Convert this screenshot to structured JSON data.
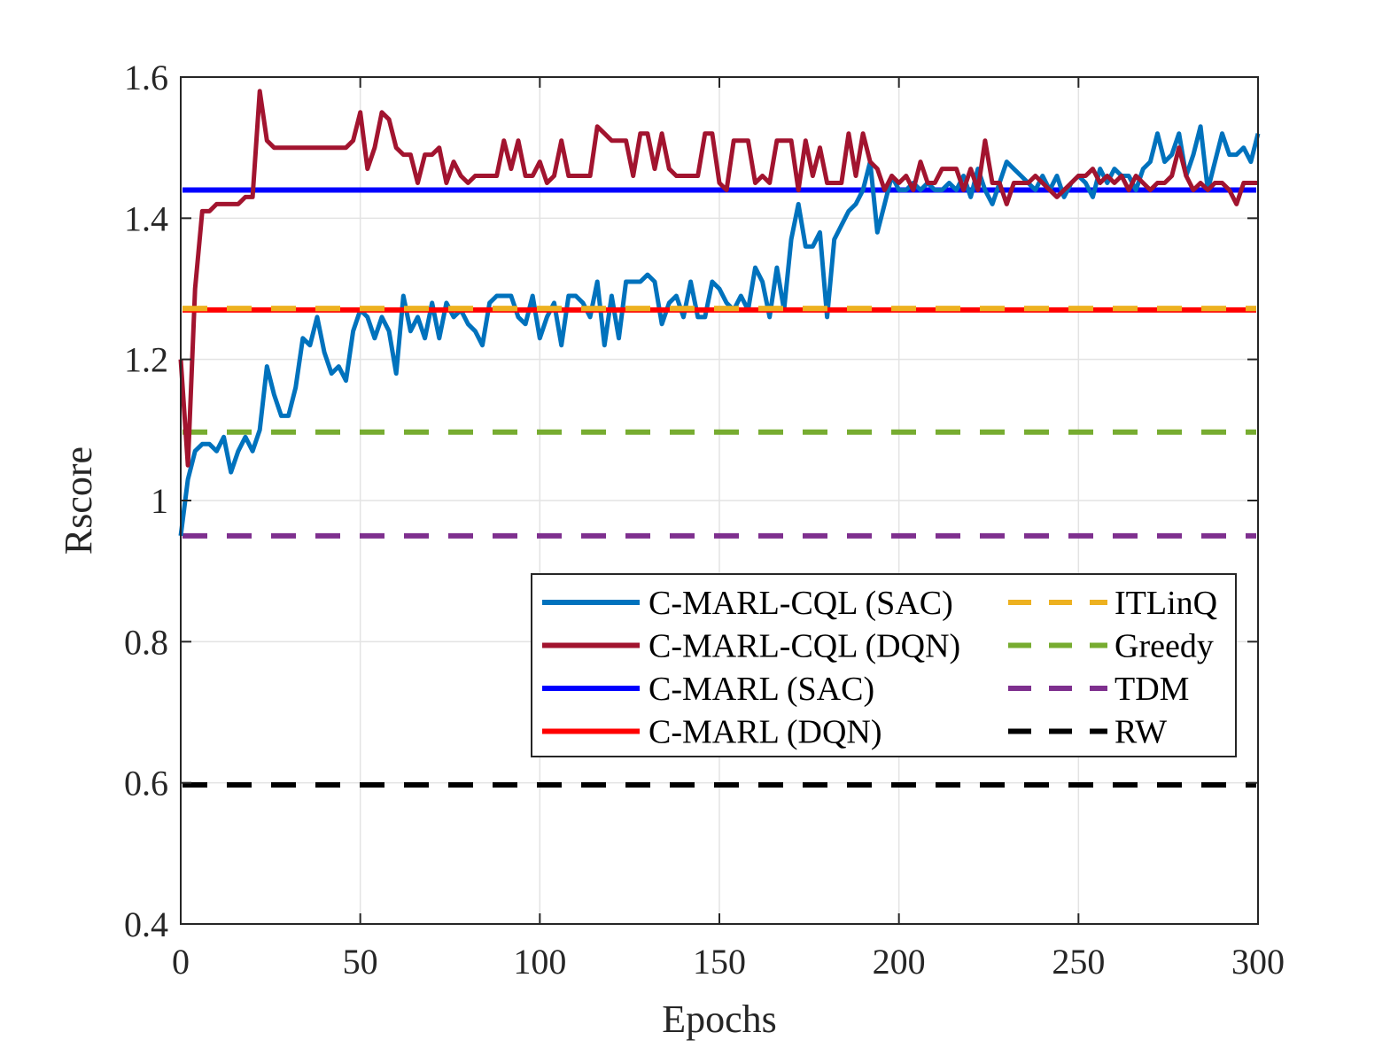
{
  "chart_data": {
    "type": "line",
    "xlabel": "Epochs",
    "ylabel": "Rscore",
    "xlim": [
      0,
      300
    ],
    "ylim": [
      0.4,
      1.6
    ],
    "xticks": [
      0,
      50,
      100,
      150,
      200,
      250,
      300
    ],
    "yticks": [
      0.4,
      0.6,
      0.8,
      1,
      1.2,
      1.4,
      1.6
    ],
    "xtick_labels": [
      "0",
      "50",
      "100",
      "150",
      "200",
      "250",
      "300"
    ],
    "ytick_labels": [
      "0.4",
      "0.6",
      "0.8",
      "1",
      "1.2",
      "1.4",
      "1.6"
    ],
    "grid": true,
    "legend_position": "lower-right",
    "series": [
      {
        "name": "C-MARL-CQL (SAC)",
        "style": "solid",
        "color": "#0072BD",
        "x": [
          0,
          2,
          4,
          6,
          8,
          10,
          12,
          14,
          16,
          18,
          20,
          22,
          24,
          26,
          28,
          30,
          32,
          34,
          36,
          38,
          40,
          42,
          44,
          46,
          48,
          50,
          52,
          54,
          56,
          58,
          60,
          62,
          64,
          66,
          68,
          70,
          72,
          74,
          76,
          78,
          80,
          82,
          84,
          86,
          88,
          90,
          92,
          94,
          96,
          98,
          100,
          102,
          104,
          106,
          108,
          110,
          112,
          114,
          116,
          118,
          120,
          122,
          124,
          126,
          128,
          130,
          132,
          134,
          136,
          138,
          140,
          142,
          144,
          146,
          148,
          150,
          152,
          154,
          156,
          158,
          160,
          162,
          164,
          166,
          168,
          170,
          172,
          174,
          176,
          178,
          180,
          182,
          184,
          186,
          188,
          190,
          192,
          194,
          196,
          198,
          200,
          202,
          204,
          206,
          208,
          210,
          212,
          214,
          216,
          218,
          220,
          222,
          224,
          226,
          228,
          230,
          232,
          234,
          236,
          238,
          240,
          242,
          244,
          246,
          248,
          250,
          252,
          254,
          256,
          258,
          260,
          262,
          264,
          266,
          268,
          270,
          272,
          274,
          276,
          278,
          280,
          282,
          284,
          286,
          288,
          290,
          292,
          294,
          296,
          298,
          300
        ],
        "y": [
          0.95,
          1.03,
          1.07,
          1.08,
          1.08,
          1.07,
          1.09,
          1.04,
          1.07,
          1.09,
          1.07,
          1.1,
          1.19,
          1.15,
          1.12,
          1.12,
          1.16,
          1.23,
          1.22,
          1.26,
          1.21,
          1.18,
          1.19,
          1.17,
          1.24,
          1.27,
          1.26,
          1.23,
          1.26,
          1.24,
          1.18,
          1.29,
          1.24,
          1.26,
          1.23,
          1.28,
          1.23,
          1.28,
          1.26,
          1.27,
          1.25,
          1.24,
          1.22,
          1.28,
          1.29,
          1.29,
          1.29,
          1.26,
          1.25,
          1.29,
          1.23,
          1.26,
          1.28,
          1.22,
          1.29,
          1.29,
          1.28,
          1.26,
          1.31,
          1.22,
          1.29,
          1.23,
          1.31,
          1.31,
          1.31,
          1.32,
          1.31,
          1.25,
          1.28,
          1.29,
          1.26,
          1.31,
          1.26,
          1.26,
          1.31,
          1.3,
          1.28,
          1.27,
          1.29,
          1.27,
          1.33,
          1.31,
          1.26,
          1.33,
          1.27,
          1.37,
          1.42,
          1.36,
          1.36,
          1.38,
          1.26,
          1.37,
          1.39,
          1.41,
          1.42,
          1.44,
          1.48,
          1.38,
          1.42,
          1.46,
          1.44,
          1.44,
          1.45,
          1.44,
          1.45,
          1.44,
          1.44,
          1.45,
          1.44,
          1.46,
          1.43,
          1.47,
          1.44,
          1.42,
          1.45,
          1.48,
          1.47,
          1.46,
          1.45,
          1.44,
          1.46,
          1.44,
          1.46,
          1.43,
          1.45,
          1.46,
          1.45,
          1.43,
          1.47,
          1.45,
          1.47,
          1.46,
          1.46,
          1.44,
          1.47,
          1.48,
          1.52,
          1.48,
          1.49,
          1.52,
          1.46,
          1.49,
          1.53,
          1.44,
          1.48,
          1.52,
          1.49,
          1.49,
          1.5,
          1.48,
          1.52
        ],
        "chart_note": "values approximated from plotted curve"
      },
      {
        "name": "C-MARL-CQL (DQN)",
        "style": "solid",
        "color": "#A2142F",
        "x": [
          0,
          2,
          4,
          6,
          8,
          10,
          12,
          14,
          16,
          18,
          20,
          22,
          24,
          26,
          28,
          30,
          32,
          34,
          36,
          38,
          40,
          42,
          44,
          46,
          48,
          50,
          52,
          54,
          56,
          58,
          60,
          62,
          64,
          66,
          68,
          70,
          72,
          74,
          76,
          78,
          80,
          82,
          84,
          86,
          88,
          90,
          92,
          94,
          96,
          98,
          100,
          102,
          104,
          106,
          108,
          110,
          112,
          114,
          116,
          118,
          120,
          122,
          124,
          126,
          128,
          130,
          132,
          134,
          136,
          138,
          140,
          142,
          144,
          146,
          148,
          150,
          152,
          154,
          156,
          158,
          160,
          162,
          164,
          166,
          168,
          170,
          172,
          174,
          176,
          178,
          180,
          182,
          184,
          186,
          188,
          190,
          192,
          194,
          196,
          198,
          200,
          202,
          204,
          206,
          208,
          210,
          212,
          214,
          216,
          218,
          220,
          222,
          224,
          226,
          228,
          230,
          232,
          234,
          236,
          238,
          240,
          242,
          244,
          246,
          248,
          250,
          252,
          254,
          256,
          258,
          260,
          262,
          264,
          266,
          268,
          270,
          272,
          274,
          276,
          278,
          280,
          282,
          284,
          286,
          288,
          290,
          292,
          294,
          296,
          298,
          300
        ],
        "y": [
          1.2,
          1.05,
          1.3,
          1.41,
          1.41,
          1.42,
          1.42,
          1.42,
          1.42,
          1.43,
          1.43,
          1.58,
          1.51,
          1.5,
          1.5,
          1.5,
          1.5,
          1.5,
          1.5,
          1.5,
          1.5,
          1.5,
          1.5,
          1.5,
          1.51,
          1.55,
          1.47,
          1.5,
          1.55,
          1.54,
          1.5,
          1.49,
          1.49,
          1.45,
          1.49,
          1.49,
          1.5,
          1.45,
          1.48,
          1.46,
          1.45,
          1.46,
          1.46,
          1.46,
          1.46,
          1.51,
          1.47,
          1.51,
          1.46,
          1.46,
          1.48,
          1.45,
          1.46,
          1.51,
          1.46,
          1.46,
          1.46,
          1.46,
          1.53,
          1.52,
          1.51,
          1.51,
          1.51,
          1.46,
          1.52,
          1.52,
          1.47,
          1.52,
          1.47,
          1.46,
          1.46,
          1.46,
          1.46,
          1.52,
          1.52,
          1.45,
          1.44,
          1.51,
          1.51,
          1.51,
          1.45,
          1.46,
          1.45,
          1.51,
          1.51,
          1.51,
          1.44,
          1.51,
          1.46,
          1.5,
          1.45,
          1.45,
          1.45,
          1.52,
          1.46,
          1.52,
          1.48,
          1.47,
          1.44,
          1.46,
          1.45,
          1.46,
          1.44,
          1.48,
          1.45,
          1.45,
          1.47,
          1.47,
          1.47,
          1.44,
          1.47,
          1.44,
          1.51,
          1.45,
          1.45,
          1.42,
          1.45,
          1.45,
          1.45,
          1.46,
          1.45,
          1.44,
          1.43,
          1.44,
          1.45,
          1.46,
          1.46,
          1.47,
          1.45,
          1.46,
          1.45,
          1.46,
          1.44,
          1.46,
          1.45,
          1.44,
          1.45,
          1.45,
          1.46,
          1.5,
          1.46,
          1.44,
          1.45,
          1.44,
          1.45,
          1.45,
          1.44,
          1.42,
          1.45,
          1.45,
          1.45
        ],
        "chart_note": "values approximated from plotted curve"
      },
      {
        "name": "C-MARL (SAC)",
        "style": "solid",
        "color": "#0000FF",
        "constant": 1.44
      },
      {
        "name": "C-MARL (DQN)",
        "style": "solid",
        "color": "#FF0000",
        "constant": 1.27
      },
      {
        "name": "ITLinQ",
        "style": "dashed",
        "color": "#EDB120",
        "constant": 1.272
      },
      {
        "name": "Greedy",
        "style": "dashed",
        "color": "#77AC30",
        "constant": 1.097
      },
      {
        "name": "TDM",
        "style": "dashed",
        "color": "#7E2F8E",
        "constant": 0.95
      },
      {
        "name": "RW",
        "style": "dashed",
        "color": "#000000",
        "constant": 0.597
      }
    ]
  }
}
